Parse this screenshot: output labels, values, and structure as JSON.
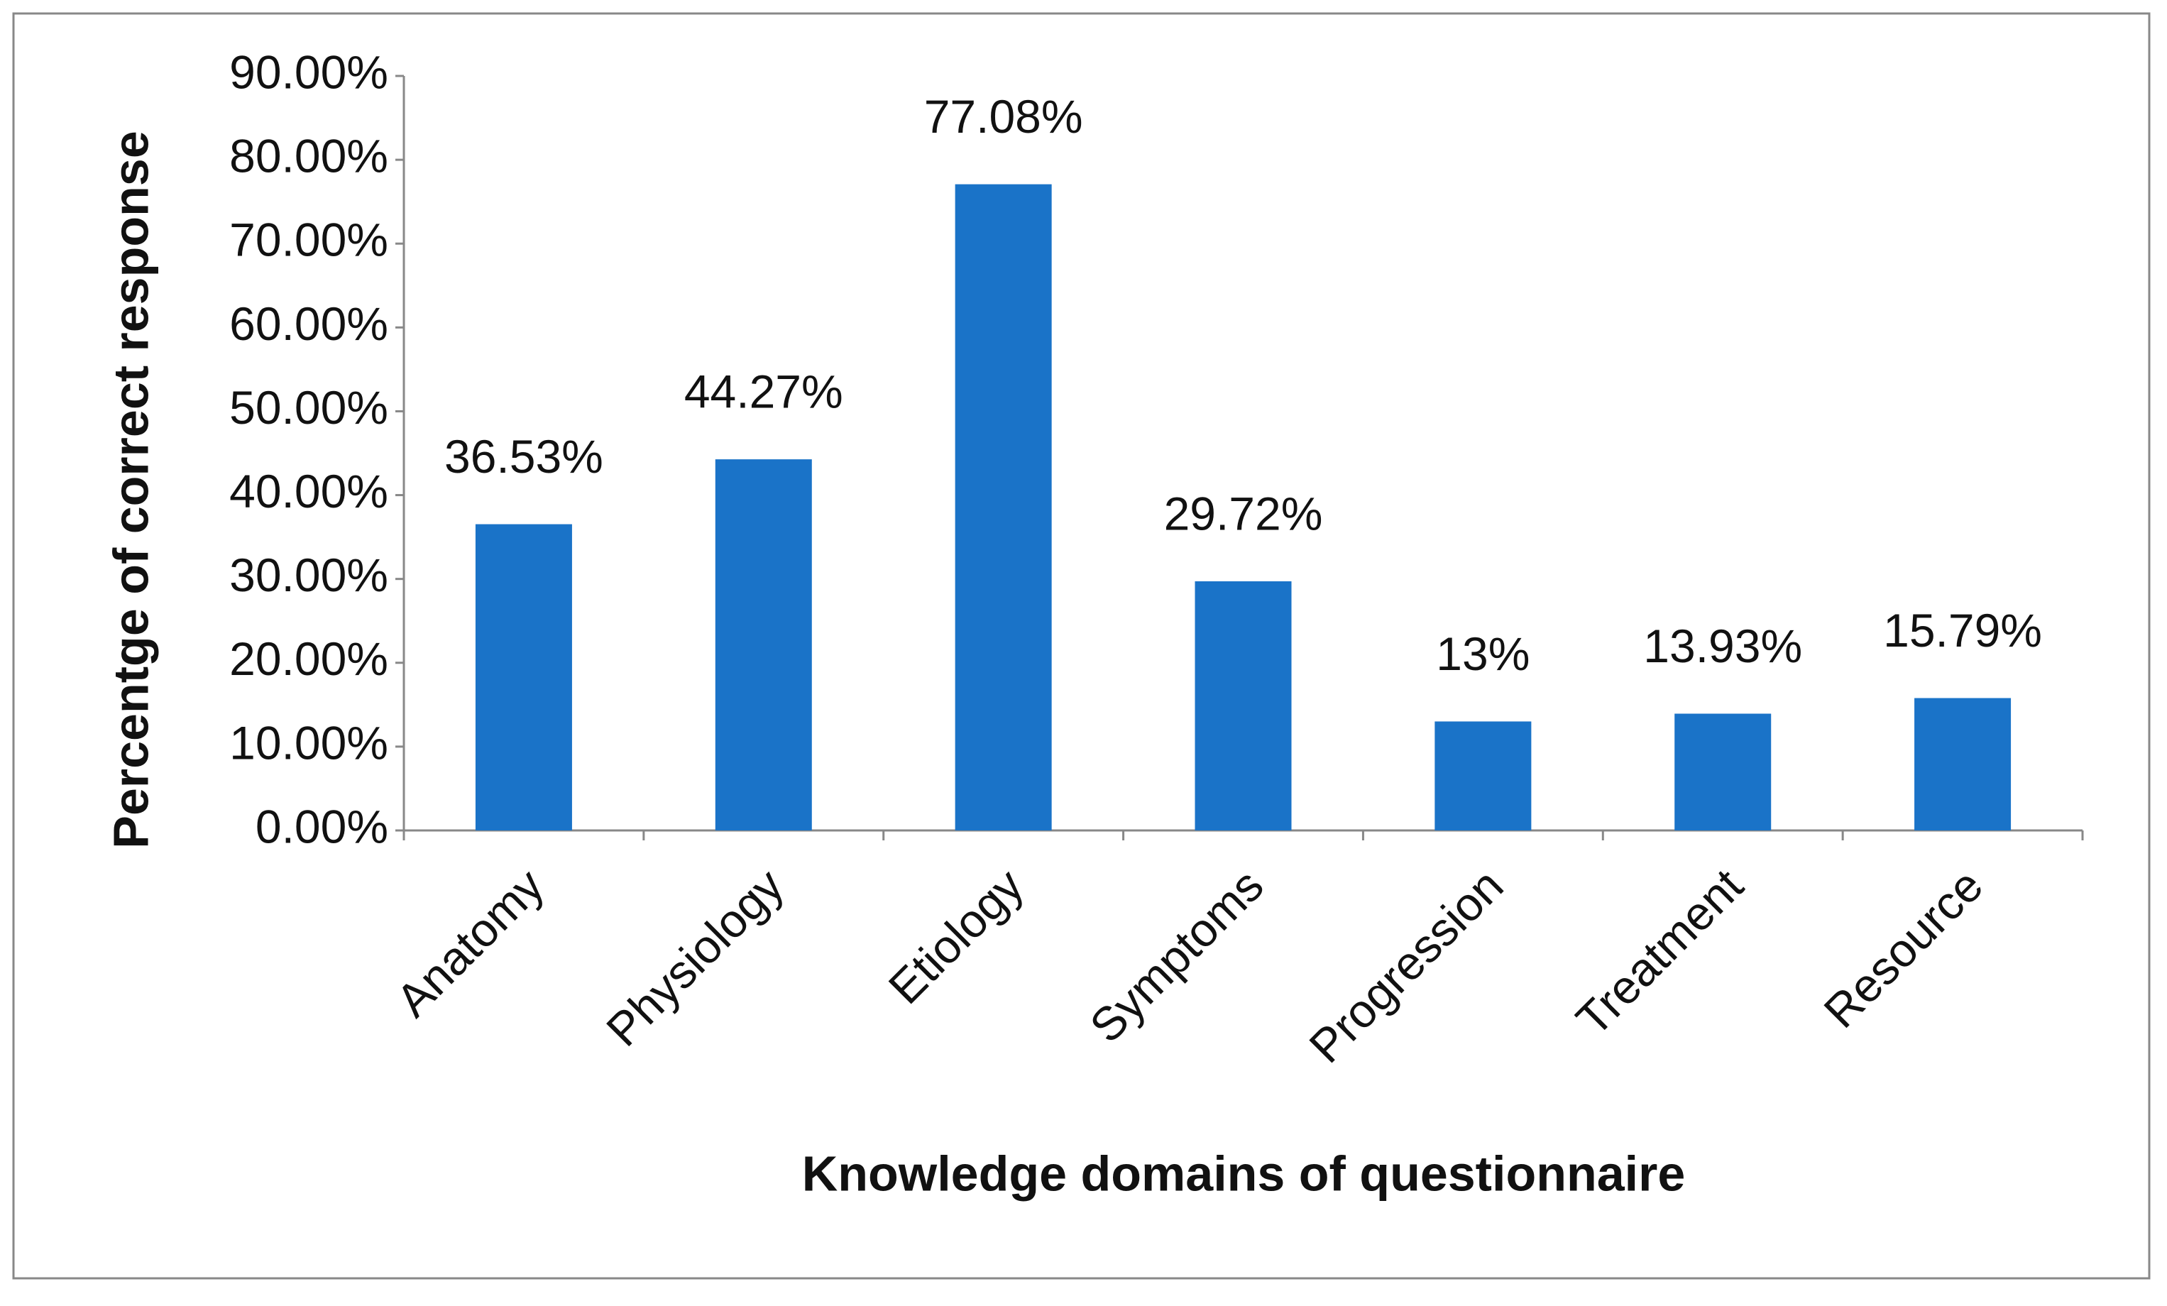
{
  "chart_data": {
    "type": "bar",
    "x_label": "Knowledge domains of questionnaire",
    "y_label": "Percentge of correct response",
    "categories": [
      "Anatomy",
      "Physiology",
      "Etiology",
      "Symptoms",
      "Progression",
      "Treatment",
      "Resource"
    ],
    "values": [
      36.53,
      44.27,
      77.08,
      29.72,
      13,
      13.93,
      15.79
    ],
    "value_labels": [
      "36.53%",
      "44.27%",
      "77.08%",
      "29.72%",
      "13%",
      "13.93%",
      "15.79%"
    ],
    "color": "#1a73c8",
    "ylim": [
      0,
      90
    ],
    "yticks": [
      {
        "value": 0,
        "label": "0.00%"
      },
      {
        "value": 10,
        "label": "10.00%"
      },
      {
        "value": 20,
        "label": "20.00%"
      },
      {
        "value": 30,
        "label": "30.00%"
      },
      {
        "value": 40,
        "label": "40.00%"
      },
      {
        "value": 50,
        "label": "50.00%"
      },
      {
        "value": 60,
        "label": "60.00%"
      },
      {
        "value": 70,
        "label": "70.00%"
      },
      {
        "value": 80,
        "label": "80.00%"
      },
      {
        "value": 90,
        "label": "90.00%"
      }
    ],
    "grid": false
  }
}
